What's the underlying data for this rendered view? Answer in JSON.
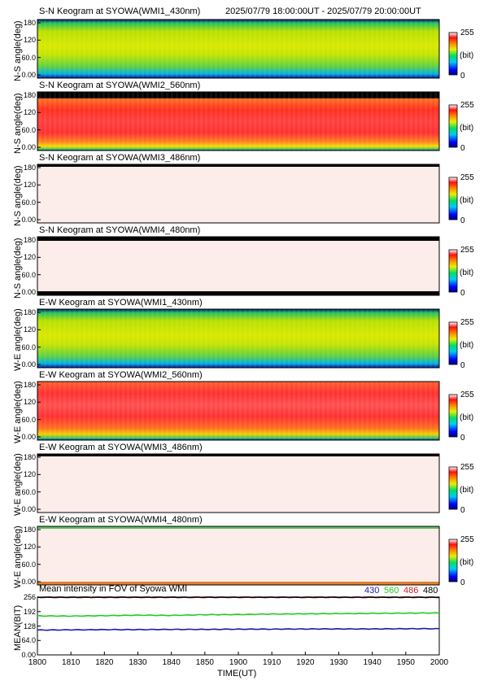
{
  "header": {
    "time_range": "2025/07/79 18:00:00UT - 2025/07/79 20:00:00UT"
  },
  "colorbar": {
    "max": "255",
    "unit": "(bit)",
    "min": "0"
  },
  "panels": [
    {
      "title": "S-N Keogram at SYOWA(WMI1_430nm)",
      "ylabel": "N-S angle(deg)",
      "yticks": [
        "180",
        "120",
        "60.0",
        "0.00"
      ],
      "profile": "green"
    },
    {
      "title": "S-N Keogram at SYOWA(WMI2_560nm)",
      "ylabel": "N-S angle(deg)",
      "yticks": [
        "180",
        "120",
        "60.0",
        "0.00"
      ],
      "profile": "red"
    },
    {
      "title": "S-N Keogram at SYOWA(WMI3_486nm)",
      "ylabel": "N-S angle(deg)",
      "yticks": [
        "180",
        "120",
        "60.0",
        "0.00"
      ],
      "profile": "pale"
    },
    {
      "title": "S-N Keogram at SYOWA(WMI4_480nm)",
      "ylabel": "N-S angle(deg)",
      "yticks": [
        "180",
        "120",
        "60.0",
        "0.00"
      ],
      "profile": "pale-black"
    },
    {
      "title": "E-W Keogram at SYOWA(WMI1_430nm)",
      "ylabel": "W-E angle(deg)",
      "yticks": [
        "180",
        "120",
        "60.0",
        "0.00"
      ],
      "profile": "green"
    },
    {
      "title": "E-W Keogram at SYOWA(WMI2_560nm)",
      "ylabel": "W-E angle(deg)",
      "yticks": [
        "180",
        "120",
        "60.0",
        "0.00"
      ],
      "profile": "red"
    },
    {
      "title": "E-W Keogram at SYOWA(WMI3_486nm)",
      "ylabel": "W-E angle(deg)",
      "yticks": [
        "180",
        "120",
        "60.0",
        "0.00"
      ],
      "profile": "pale"
    },
    {
      "title": "E-W Keogram at SYOWA(WMI4_480nm)",
      "ylabel": "W-E angle(deg)",
      "yticks": [
        "180",
        "120",
        "60.0",
        "0.00"
      ],
      "profile": "pale-edge"
    }
  ],
  "mean_panel": {
    "title": "Mean intensity in FOV of Syowa WMI",
    "ylabel": "MEAN(BIT)",
    "yticks": [
      "256",
      "192",
      "128",
      "64.0",
      "0.00"
    ],
    "legend": [
      {
        "label": "430",
        "color": "#1a1aa8"
      },
      {
        "label": "560",
        "color": "#22cc22"
      },
      {
        "label": "486",
        "color": "#cc2222"
      },
      {
        "label": "480",
        "color": "#000000"
      }
    ]
  },
  "xaxis": {
    "ticks": [
      "1800",
      "1810",
      "1820",
      "1830",
      "1840",
      "1850",
      "1900",
      "1910",
      "1920",
      "1930",
      "1940",
      "1950",
      "2000"
    ],
    "label": "TIME(UT)"
  },
  "chart_data": {
    "type": "line",
    "title": "Mean intensity in FOV of Syowa WMI",
    "xlabel": "TIME(UT)",
    "ylabel": "MEAN(BIT)",
    "x_range": [
      "18:00",
      "20:00"
    ],
    "ylim": [
      0,
      256
    ],
    "x": [
      "18:00",
      "18:10",
      "18:20",
      "18:30",
      "18:40",
      "18:50",
      "19:00",
      "19:10",
      "19:20",
      "19:30",
      "19:40",
      "19:50",
      "20:00"
    ],
    "series": [
      {
        "name": "430",
        "color": "#1a1aa8",
        "values": [
          110,
          111,
          112,
          112,
          113,
          113,
          114,
          114,
          115,
          115,
          115,
          116,
          116
        ]
      },
      {
        "name": "560",
        "color": "#22cc22",
        "values": [
          173,
          172,
          174,
          176,
          175,
          178,
          179,
          181,
          182,
          183,
          184,
          185,
          186
        ]
      },
      {
        "name": "486",
        "color": "#cc2222",
        "values": [
          255,
          255,
          255,
          255,
          255,
          255,
          255,
          255,
          255,
          255,
          255,
          255,
          255
        ]
      },
      {
        "name": "480",
        "color": "#000000",
        "values": [
          256,
          256,
          256,
          256,
          256,
          256,
          256,
          256,
          256,
          256,
          256,
          256,
          256
        ]
      }
    ]
  }
}
